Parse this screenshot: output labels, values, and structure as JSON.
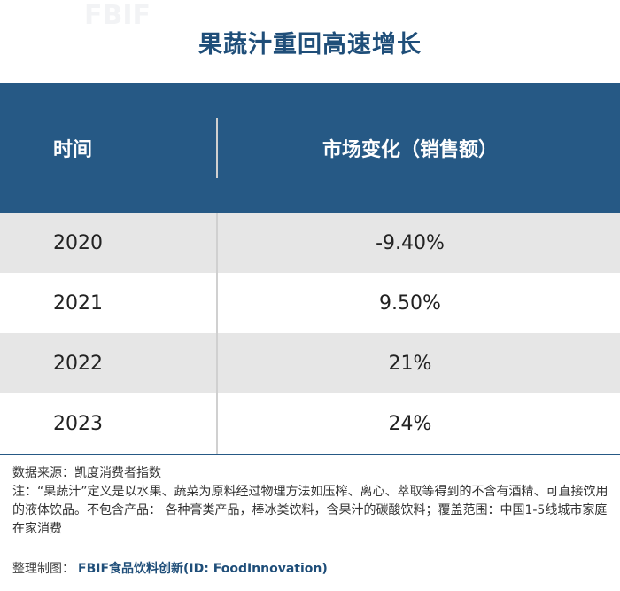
{
  "title": "果蔬汁重回高速增长",
  "chart_data": {
    "type": "table",
    "columns": [
      "时间",
      "市场变化（销售额）"
    ],
    "rows": [
      {
        "year": "2020",
        "change": "-9.40%"
      },
      {
        "year": "2021",
        "change": "9.50%"
      },
      {
        "year": "2022",
        "change": "21%"
      },
      {
        "year": "2023",
        "change": "24%"
      }
    ]
  },
  "footnotes": {
    "source": "数据来源：凯度消费者指数",
    "note": "注：“果蔬汁”定义是以水果、蔬菜为原料经过物理方法如压榨、离心、萃取等得到的不含有酒精、可直接饮用的液体饮品。不包含产品： 各种膏类产品，棒冰类饮料，含果汁的碳酸饮料；覆盖范围：中国1-5线城市家庭在家消费"
  },
  "credit": {
    "label": "整理制图：",
    "brand": "FBIF食品饮料创新(ID: FoodInnovation)"
  },
  "watermark": "FBIF",
  "colors": {
    "header_bg": "#265985",
    "title": "#1f4e79",
    "row_gray": "#e6e6e6"
  }
}
